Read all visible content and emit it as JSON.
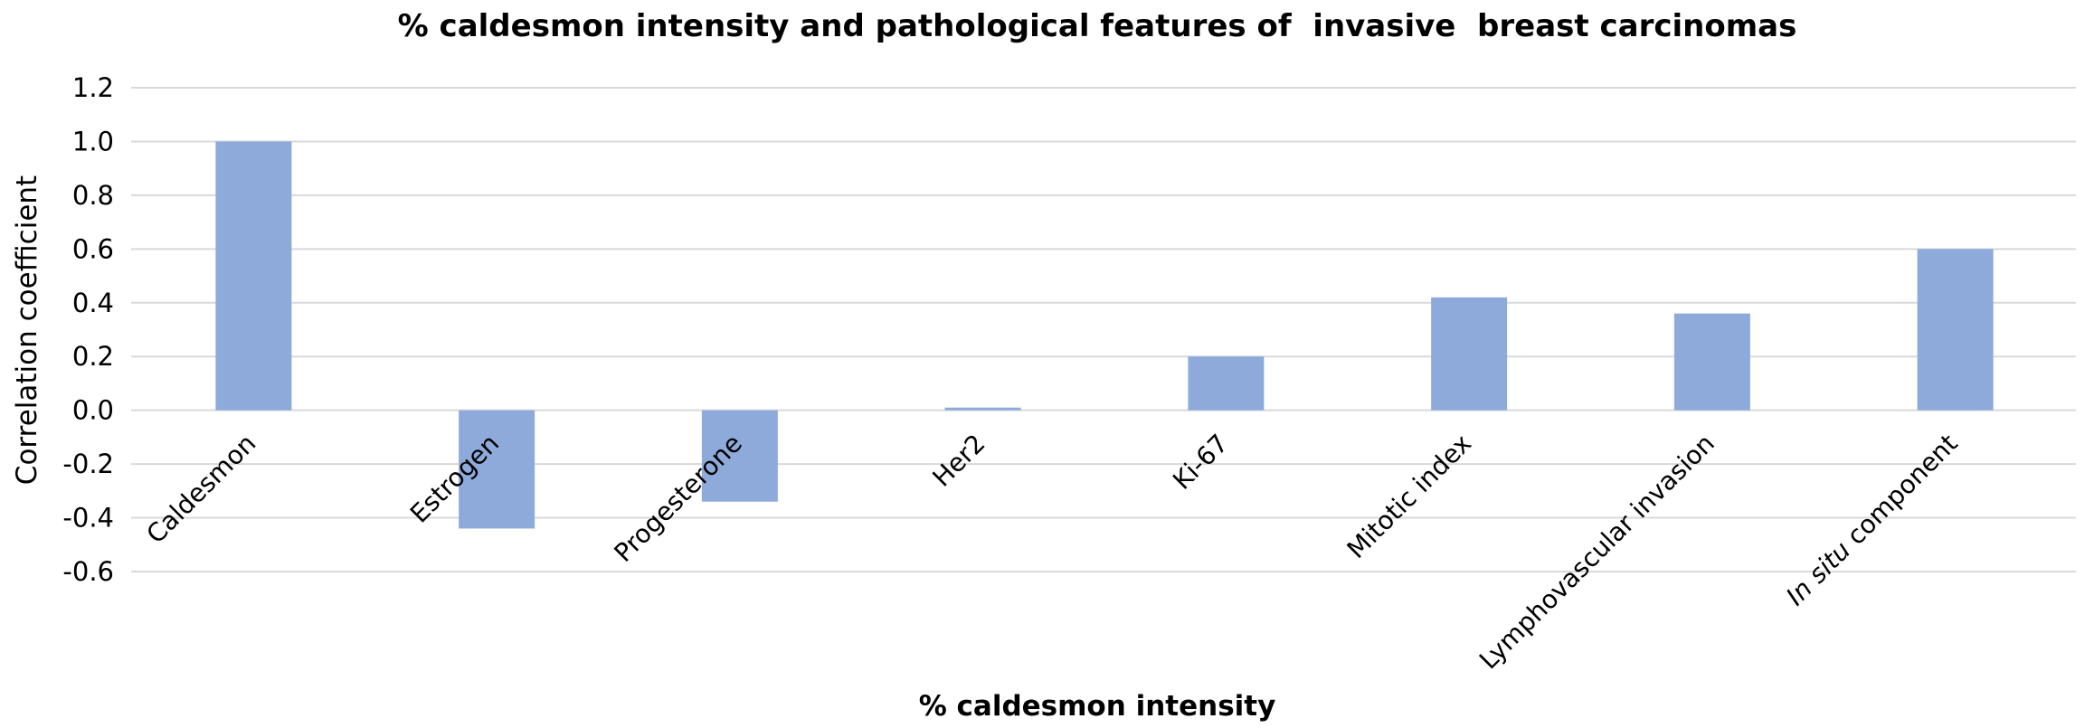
{
  "chart_data": {
    "type": "bar",
    "title": "% caldesmon intensity and pathological features of  invasive  breast carcinomas",
    "xlabel": "% caldesmon intensity",
    "ylabel": "Correlation coefficient",
    "ylim": [
      -0.6,
      1.2
    ],
    "yticks": [
      "1.2",
      "1.0",
      "0.8",
      "0.6",
      "0.4",
      "0.2",
      "0.0",
      "-0.2",
      "-0.4",
      "-0.6"
    ],
    "grid": true,
    "categories": [
      "Caldesmon",
      "Estrogen",
      "Progesterone",
      "Her2",
      "Ki-67",
      "Mitotic index",
      "Lymphovascular invasion",
      "In situ component"
    ],
    "values": [
      1.0,
      -0.44,
      -0.34,
      0.01,
      0.2,
      0.42,
      0.36,
      0.6
    ],
    "bar_color": "#8eaadb"
  }
}
